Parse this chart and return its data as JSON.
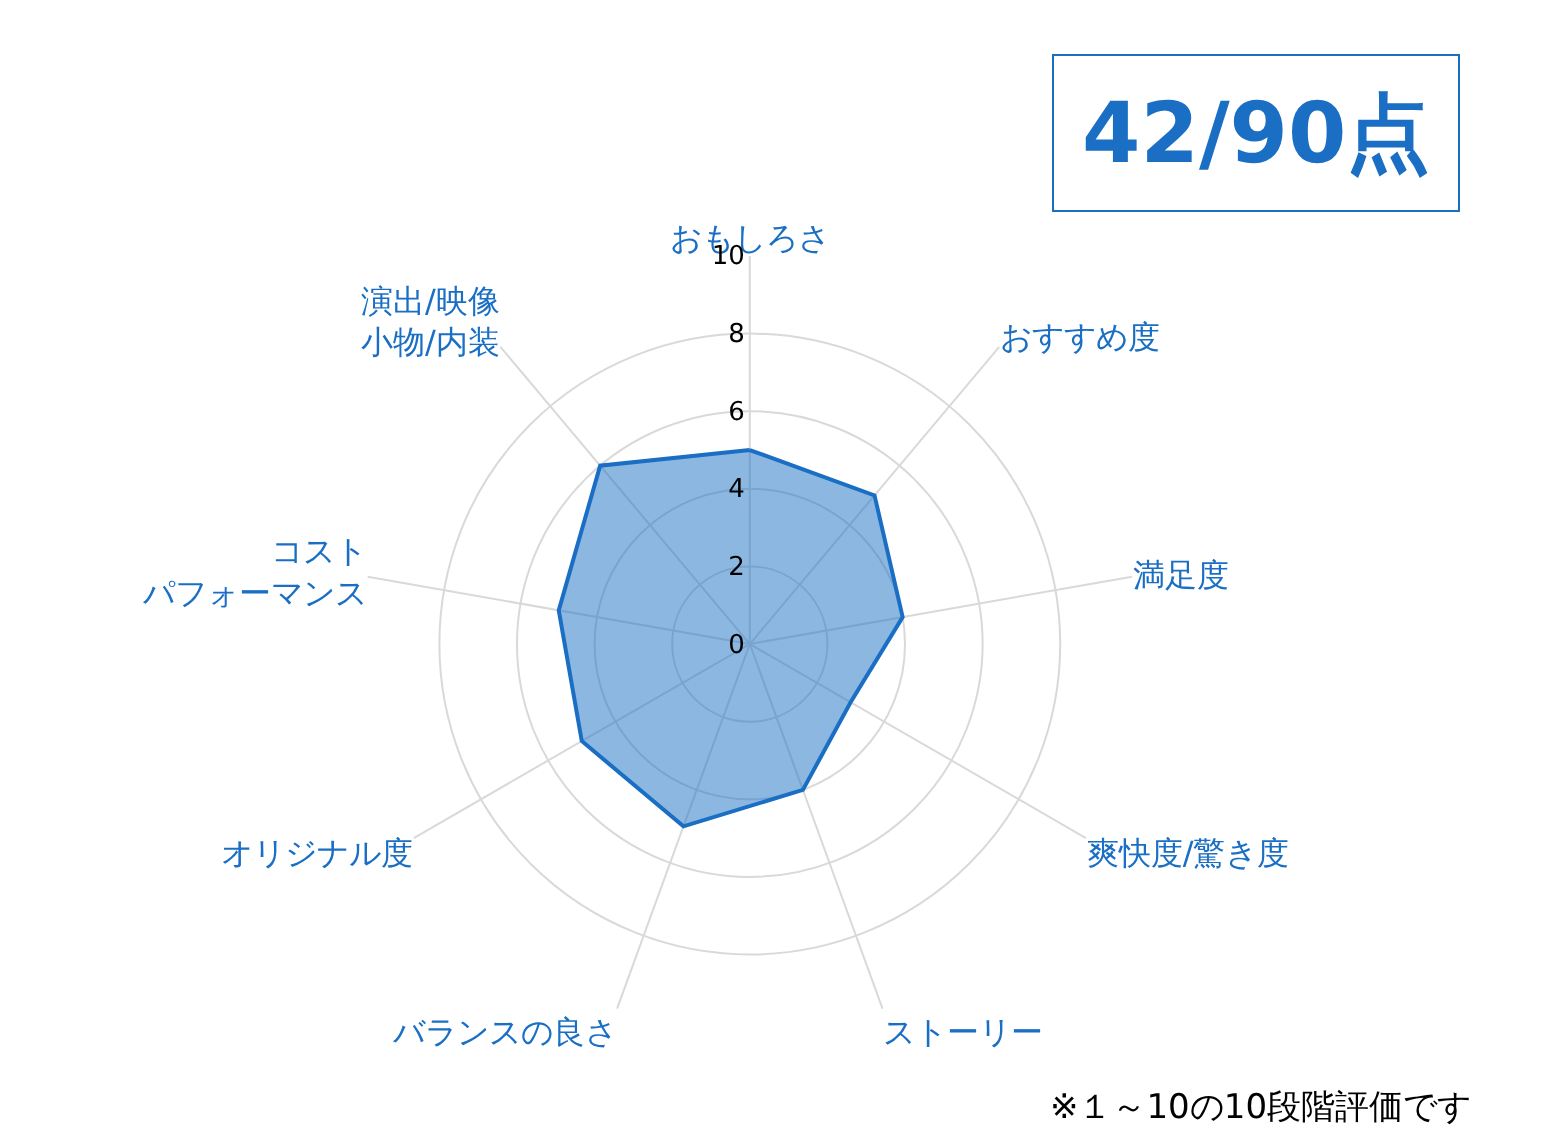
{
  "chart_data": {
    "type": "radar",
    "categories": [
      "おもしろさ",
      "おすすめ度",
      "満足度",
      "爽快度/驚き度",
      "ストーリー",
      "バランスの良さ",
      "オリジナル度",
      "コストパフォーマンス",
      "演出/映像小物/内装"
    ],
    "series": [
      {
        "color": "#1a6fc4",
        "values": [
          5,
          5,
          4,
          3,
          4,
          5,
          5,
          5,
          6
        ]
      }
    ],
    "ylim": [
      0,
      10
    ],
    "yticks": [
      0,
      2,
      4,
      6,
      8,
      10
    ],
    "grid": true,
    "marker": "none",
    "annotations": [
      "42/90点",
      "※１～10の10段階評価です"
    ]
  }
}
